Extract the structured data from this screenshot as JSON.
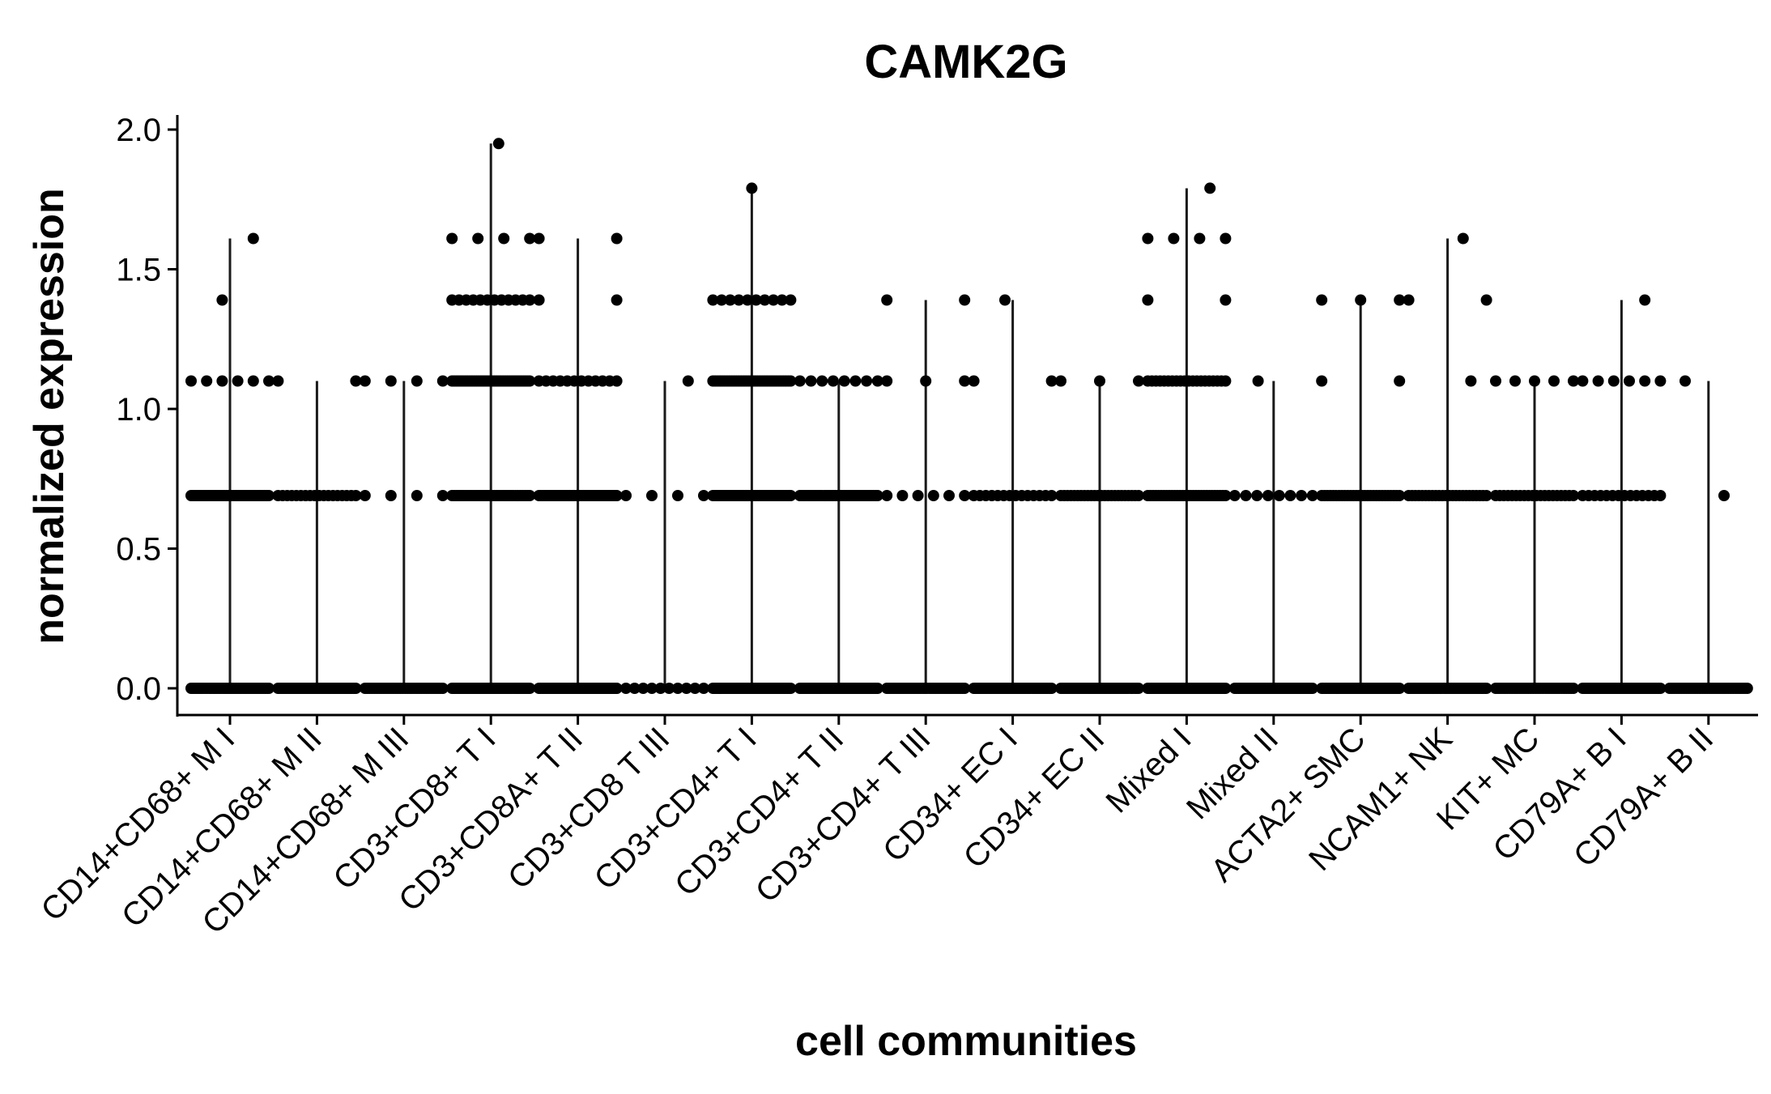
{
  "chart_data": {
    "type": "scatter",
    "title": "CAMK2G",
    "xlabel": "cell communities",
    "ylabel": "normalized expression",
    "ylim": [
      -0.1,
      2.05
    ],
    "yticks": [
      "0.0",
      "0.5",
      "1.0",
      "1.5",
      "2.0"
    ],
    "ytick_values": [
      0.0,
      0.5,
      1.0,
      1.5,
      2.0
    ],
    "grid": false,
    "legend": "none",
    "point_color": "#000000",
    "line_color": "#1a1a1a",
    "categories": [
      "CD14+CD68+ M I",
      "CD14+CD68+ M II",
      "CD14+CD68+ M III",
      "CD3+CD8+ T I",
      "CD3+CD8A+ T II",
      "CD3+CD8 T III",
      "CD3+CD4+ T I",
      "CD3+CD4+ T II",
      "CD3+CD4+ T III",
      "CD34+ EC I",
      "CD34+ EC II",
      "Mixed I",
      "Mixed II",
      "ACTA2+ SMC",
      "NCAM1+ NK",
      "KIT+ MC",
      "CD79A+ B I",
      "CD79A+ B II"
    ],
    "max_values": [
      1.61,
      1.1,
      1.1,
      1.95,
      1.61,
      1.1,
      1.79,
      1.1,
      1.39,
      1.39,
      1.1,
      1.79,
      1.1,
      1.39,
      1.61,
      1.1,
      1.39,
      1.1
    ],
    "levels": [
      [
        {
          "y": 0.0,
          "n": 40
        },
        {
          "y": 0.69,
          "n": 36
        },
        {
          "y": 1.1,
          "n": 6
        },
        {
          "y": 1.39,
          "n": 1
        },
        {
          "y": 1.61,
          "n": 1
        }
      ],
      [
        {
          "y": 0.0,
          "n": 44
        },
        {
          "y": 0.69,
          "n": 18
        },
        {
          "y": 1.1,
          "n": 2
        }
      ],
      [
        {
          "y": 0.0,
          "n": 34
        },
        {
          "y": 0.69,
          "n": 4
        },
        {
          "y": 1.1,
          "n": 4
        }
      ],
      [
        {
          "y": 0.0,
          "n": 48
        },
        {
          "y": 0.69,
          "n": 34
        },
        {
          "y": 1.1,
          "n": 36
        },
        {
          "y": 1.39,
          "n": 12
        },
        {
          "y": 1.61,
          "n": 4
        },
        {
          "y": 1.95,
          "n": 1
        }
      ],
      [
        {
          "y": 0.0,
          "n": 48
        },
        {
          "y": 0.69,
          "n": 40
        },
        {
          "y": 1.1,
          "n": 12
        },
        {
          "y": 1.39,
          "n": 2
        },
        {
          "y": 1.61,
          "n": 2
        }
      ],
      [
        {
          "y": 0.0,
          "n": 10
        },
        {
          "y": 0.69,
          "n": 4
        },
        {
          "y": 1.1,
          "n": 1
        }
      ],
      [
        {
          "y": 0.0,
          "n": 48
        },
        {
          "y": 0.69,
          "n": 40
        },
        {
          "y": 1.1,
          "n": 34
        },
        {
          "y": 1.39,
          "n": 10
        },
        {
          "y": 1.79,
          "n": 1
        }
      ],
      [
        {
          "y": 0.0,
          "n": 48
        },
        {
          "y": 0.69,
          "n": 36
        },
        {
          "y": 1.1,
          "n": 8
        }
      ],
      [
        {
          "y": 0.0,
          "n": 36
        },
        {
          "y": 0.69,
          "n": 6
        },
        {
          "y": 1.1,
          "n": 3
        },
        {
          "y": 1.39,
          "n": 2
        }
      ],
      [
        {
          "y": 0.0,
          "n": 44
        },
        {
          "y": 0.69,
          "n": 14
        },
        {
          "y": 1.1,
          "n": 2
        },
        {
          "y": 1.39,
          "n": 1
        }
      ],
      [
        {
          "y": 0.0,
          "n": 40
        },
        {
          "y": 0.69,
          "n": 24
        },
        {
          "y": 1.1,
          "n": 3
        }
      ],
      [
        {
          "y": 0.0,
          "n": 48
        },
        {
          "y": 0.69,
          "n": 30
        },
        {
          "y": 1.1,
          "n": 20
        },
        {
          "y": 1.39,
          "n": 2
        },
        {
          "y": 1.61,
          "n": 4
        },
        {
          "y": 1.79,
          "n": 1
        }
      ],
      [
        {
          "y": 0.0,
          "n": 44
        },
        {
          "y": 0.69,
          "n": 8
        },
        {
          "y": 1.1,
          "n": 1
        }
      ],
      [
        {
          "y": 0.0,
          "n": 48
        },
        {
          "y": 0.69,
          "n": 28
        },
        {
          "y": 1.1,
          "n": 2
        },
        {
          "y": 1.39,
          "n": 3
        }
      ],
      [
        {
          "y": 0.0,
          "n": 46
        },
        {
          "y": 0.69,
          "n": 24
        },
        {
          "y": 1.1,
          "n": 1
        },
        {
          "y": 1.39,
          "n": 2
        },
        {
          "y": 1.61,
          "n": 1
        }
      ],
      [
        {
          "y": 0.0,
          "n": 34
        },
        {
          "y": 0.69,
          "n": 20
        },
        {
          "y": 1.1,
          "n": 5
        }
      ],
      [
        {
          "y": 0.0,
          "n": 44
        },
        {
          "y": 0.69,
          "n": 14
        },
        {
          "y": 1.1,
          "n": 6
        },
        {
          "y": 1.39,
          "n": 1
        }
      ],
      [
        {
          "y": 0.0,
          "n": 34
        },
        {
          "y": 0.69,
          "n": 1
        },
        {
          "y": 1.1,
          "n": 1
        }
      ]
    ]
  }
}
